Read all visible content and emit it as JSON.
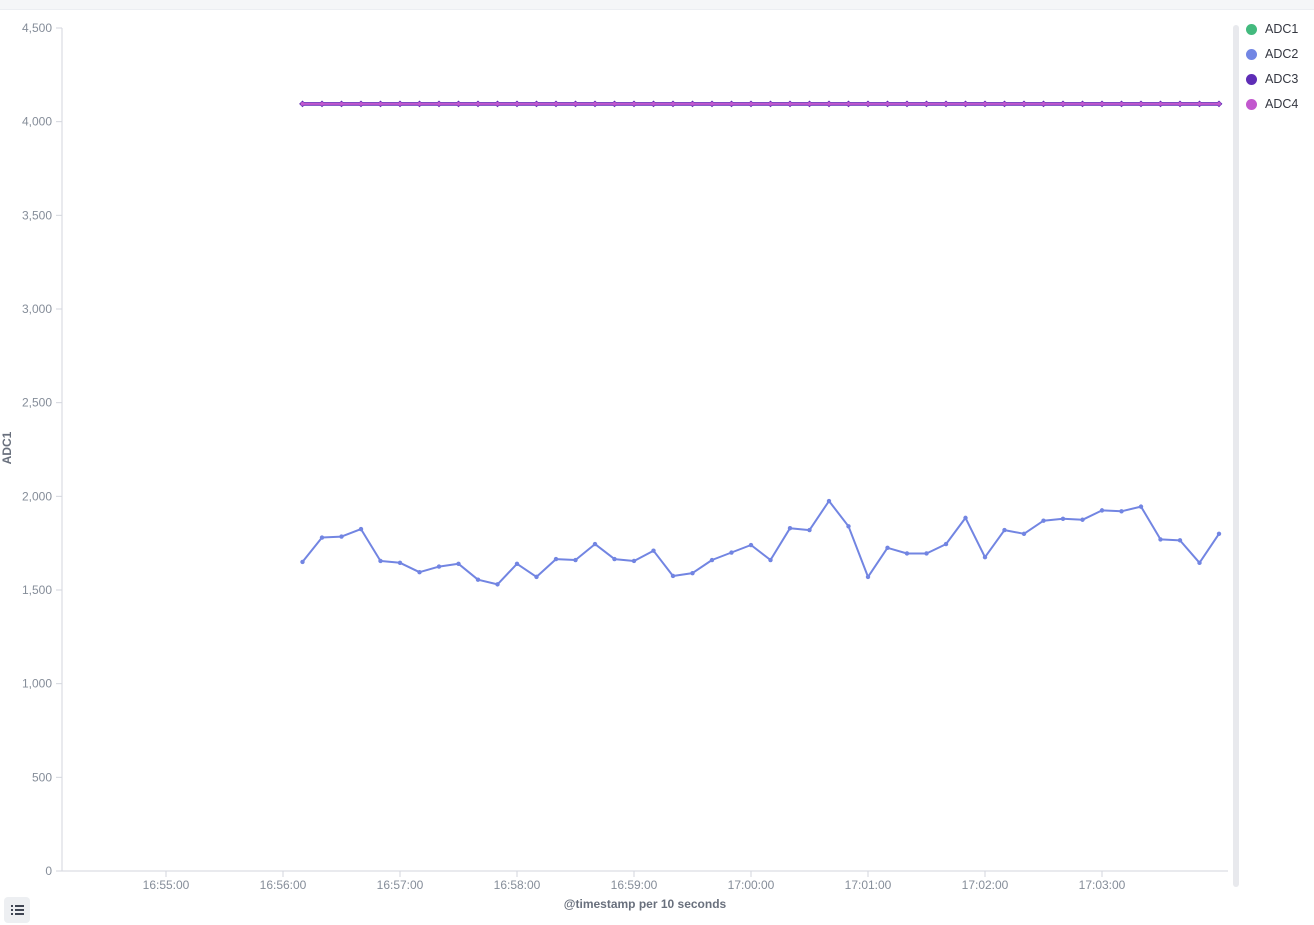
{
  "window": {
    "top_strip_color": "#f5f6f8"
  },
  "colors": {
    "axis_line": "#d3d6dd",
    "tick_label": "#858d99",
    "axis_title": "#69707d",
    "legend_label": "#343741",
    "background": "#ffffff",
    "scrollbar": "#e8e9ed"
  },
  "legend": {
    "position": "right",
    "items": [
      {
        "label": "ADC1",
        "color": "#43ba7e"
      },
      {
        "label": "ADC2",
        "color": "#7286e4"
      },
      {
        "label": "ADC3",
        "color": "#5e2db6"
      },
      {
        "label": "ADC4",
        "color": "#c258ce"
      }
    ]
  },
  "controls": {
    "legend_toggle_icon": "list-icon"
  },
  "chart_data": {
    "type": "line",
    "title": "",
    "xlabel": "@timestamp per 10 seconds",
    "ylabel": "ADC1",
    "x_axis_start": "16:55:00",
    "ylim": [
      0,
      4500
    ],
    "grid": false,
    "legend_position": "right",
    "y_ticks": [
      {
        "value": 0,
        "label": "0"
      },
      {
        "value": 500,
        "label": "500"
      },
      {
        "value": 1000,
        "label": "1,000"
      },
      {
        "value": 1500,
        "label": "1,500"
      },
      {
        "value": 2000,
        "label": "2,000"
      },
      {
        "value": 2500,
        "label": "2,500"
      },
      {
        "value": 3000,
        "label": "3,000"
      },
      {
        "value": 3500,
        "label": "3,500"
      },
      {
        "value": 4000,
        "label": "4,000"
      },
      {
        "value": 4500,
        "label": "4,500"
      }
    ],
    "x_ticks": [
      "16:55:00",
      "16:56:00",
      "16:57:00",
      "16:58:00",
      "16:59:00",
      "17:00:00",
      "17:01:00",
      "17:02:00",
      "17:03:00"
    ],
    "x": [
      "16:56:10",
      "16:56:20",
      "16:56:30",
      "16:56:40",
      "16:56:50",
      "16:57:00",
      "16:57:10",
      "16:57:20",
      "16:57:30",
      "16:57:40",
      "16:57:50",
      "16:58:00",
      "16:58:10",
      "16:58:20",
      "16:58:30",
      "16:58:40",
      "16:58:50",
      "16:59:00",
      "16:59:10",
      "16:59:20",
      "16:59:30",
      "16:59:40",
      "16:59:50",
      "17:00:00",
      "17:00:10",
      "17:00:20",
      "17:00:30",
      "17:00:40",
      "17:00:50",
      "17:01:00",
      "17:01:10",
      "17:01:20",
      "17:01:30",
      "17:01:40",
      "17:01:50",
      "17:02:00",
      "17:02:10",
      "17:02:20",
      "17:02:30",
      "17:02:40",
      "17:02:50",
      "17:03:00",
      "17:03:10",
      "17:03:20",
      "17:03:30",
      "17:03:40",
      "17:03:50",
      "17:04:00"
    ],
    "series": [
      {
        "name": "ADC1",
        "color": "#43ba7e",
        "values": [
          4095,
          4095,
          4095,
          4095,
          4095,
          4095,
          4095,
          4095,
          4095,
          4095,
          4095,
          4095,
          4095,
          4095,
          4095,
          4095,
          4095,
          4095,
          4095,
          4095,
          4095,
          4095,
          4095,
          4095,
          4095,
          4095,
          4095,
          4095,
          4095,
          4095,
          4095,
          4095,
          4095,
          4095,
          4095,
          4095,
          4095,
          4095,
          4095,
          4095,
          4095,
          4095,
          4095,
          4095,
          4095,
          4095,
          4095,
          4095
        ]
      },
      {
        "name": "ADC2",
        "color": "#7285e2",
        "values": [
          1650,
          1780,
          1785,
          1825,
          1655,
          1645,
          1595,
          1625,
          1640,
          1555,
          1530,
          1640,
          1570,
          1665,
          1660,
          1745,
          1665,
          1655,
          1710,
          1575,
          1590,
          1660,
          1700,
          1740,
          1660,
          1830,
          1820,
          1975,
          1840,
          1570,
          1725,
          1695,
          1695,
          1745,
          1885,
          1675,
          1820,
          1800,
          1870,
          1880,
          1875,
          1925,
          1920,
          1945,
          1770,
          1765,
          1645,
          1800
        ]
      },
      {
        "name": "ADC3",
        "color": "#5e2db6",
        "values": [
          4095,
          4095,
          4095,
          4095,
          4095,
          4095,
          4095,
          4095,
          4095,
          4095,
          4095,
          4095,
          4095,
          4095,
          4095,
          4095,
          4095,
          4095,
          4095,
          4095,
          4095,
          4095,
          4095,
          4095,
          4095,
          4095,
          4095,
          4095,
          4095,
          4095,
          4095,
          4095,
          4095,
          4095,
          4095,
          4095,
          4095,
          4095,
          4095,
          4095,
          4095,
          4095,
          4095,
          4095,
          4095,
          4095,
          4095,
          4095
        ]
      },
      {
        "name": "ADC4",
        "color": "#c258ce",
        "values": [
          4095,
          4095,
          4095,
          4095,
          4095,
          4095,
          4095,
          4095,
          4095,
          4095,
          4095,
          4095,
          4095,
          4095,
          4095,
          4095,
          4095,
          4095,
          4095,
          4095,
          4095,
          4095,
          4095,
          4095,
          4095,
          4095,
          4095,
          4095,
          4095,
          4095,
          4095,
          4095,
          4095,
          4095,
          4095,
          4095,
          4095,
          4095,
          4095,
          4095,
          4095,
          4095,
          4095,
          4095,
          4095,
          4095,
          4095,
          4095
        ]
      }
    ]
  }
}
